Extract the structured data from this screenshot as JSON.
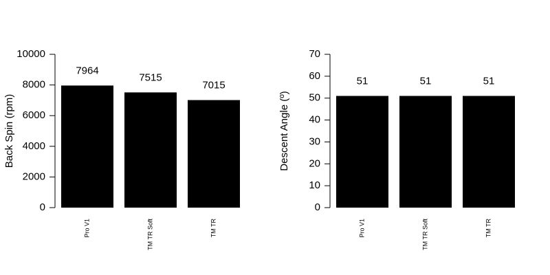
{
  "chart_data": [
    {
      "type": "bar",
      "y_label": "Back Spin (rpm)",
      "categories": [
        "Pro V1",
        "TM TR Soft",
        "TM TR"
      ],
      "values": [
        7964,
        7515,
        7015
      ],
      "color": "#000000",
      "ylim": [
        0,
        10000
      ],
      "yticks": [
        0,
        2000,
        4000,
        6000,
        8000,
        10000
      ]
    },
    {
      "type": "bar",
      "y_label": "Descent Angle (º)",
      "categories": [
        "Pro V1",
        "TM TR Soft",
        "TM TR"
      ],
      "values": [
        51,
        51,
        51
      ],
      "color": "#000000",
      "ylim": [
        0,
        70
      ],
      "yticks": [
        0,
        10,
        20,
        30,
        40,
        50,
        60,
        70
      ]
    }
  ]
}
